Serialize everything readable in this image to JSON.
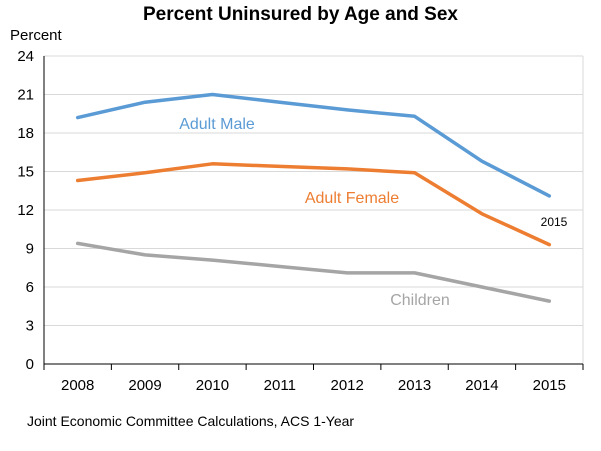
{
  "chart_data": {
    "type": "line",
    "title": "Percent Uninsured by Age and Sex",
    "ylabel": "Percent",
    "xlabel": "",
    "x": [
      "2008",
      "2009",
      "2010",
      "2011",
      "2012",
      "2013",
      "2014",
      "2015"
    ],
    "ylim": [
      0,
      24
    ],
    "yticks": [
      0,
      3,
      6,
      9,
      12,
      15,
      18,
      21,
      24
    ],
    "grid": true,
    "legend": "inline labels",
    "series": [
      {
        "name": "Adult Male",
        "color": "#5B9BD5",
        "values": [
          19.2,
          20.4,
          21.0,
          20.4,
          19.8,
          19.3,
          15.8,
          13.1
        ]
      },
      {
        "name": "Adult Female",
        "color": "#ED7D31",
        "values": [
          14.3,
          14.9,
          15.6,
          15.4,
          15.2,
          14.9,
          11.7,
          9.3
        ]
      },
      {
        "name": "Children",
        "color": "#A5A5A5",
        "values": [
          9.4,
          8.5,
          8.1,
          7.6,
          7.1,
          7.1,
          6.0,
          4.9
        ]
      }
    ],
    "annotations": [
      "2015"
    ]
  },
  "footer": {
    "source": "Joint Economic Committee Calculations, ACS 1-Year"
  }
}
